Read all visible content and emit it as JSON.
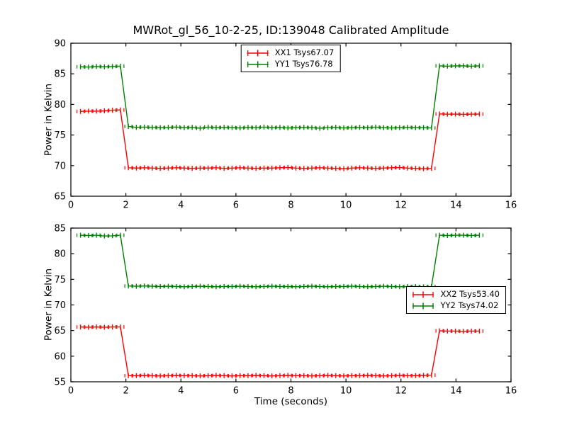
{
  "title": "MWRot_gl_56_10-2-25, ID:139048 Calibrated Amplitude",
  "colors": {
    "xx_series": "#ff0000",
    "yy_series": "#008000",
    "frame": "#000000",
    "background": "#ffffff"
  },
  "chart_data": [
    {
      "type": "line",
      "id": "top-subplot",
      "title": "",
      "xlabel": "",
      "ylabel": "Power in Kelvin",
      "xlim": [
        0,
        16
      ],
      "ylim": [
        65,
        90
      ],
      "xticks": [
        0,
        2,
        4,
        6,
        8,
        10,
        12,
        14,
        16
      ],
      "yticks": [
        65,
        70,
        75,
        80,
        85,
        90
      ],
      "grid": false,
      "legend_loc": "upper center",
      "marker": "plus-with-xerr-caps",
      "x": [
        0.35,
        0.64,
        0.93,
        1.22,
        1.51,
        1.8,
        2.09,
        2.38,
        2.67,
        2.96,
        3.25,
        3.54,
        3.83,
        4.12,
        4.41,
        4.7,
        4.99,
        5.28,
        5.57,
        5.86,
        6.15,
        6.44,
        6.73,
        7.02,
        7.31,
        7.6,
        7.89,
        8.18,
        8.47,
        8.76,
        9.05,
        9.34,
        9.63,
        9.92,
        10.21,
        10.5,
        10.79,
        11.08,
        11.37,
        11.66,
        11.95,
        12.24,
        12.53,
        12.82,
        13.11,
        13.4,
        13.69,
        13.98,
        14.27,
        14.56,
        14.85
      ],
      "series": [
        {
          "label": "XX1 Tsys67.07",
          "color": "#ff0000",
          "values": [
            78.85,
            78.9,
            78.9,
            78.95,
            79.05,
            79.1,
            69.65,
            69.6,
            69.65,
            69.6,
            69.55,
            69.6,
            69.65,
            69.6,
            69.55,
            69.6,
            69.6,
            69.65,
            69.55,
            69.6,
            69.65,
            69.6,
            69.55,
            69.6,
            69.6,
            69.65,
            69.7,
            69.6,
            69.55,
            69.6,
            69.65,
            69.6,
            69.55,
            69.5,
            69.6,
            69.65,
            69.6,
            69.55,
            69.6,
            69.65,
            69.7,
            69.6,
            69.55,
            69.5,
            69.55,
            78.45,
            78.4,
            78.42,
            78.38,
            78.4,
            78.42
          ]
        },
        {
          "label": "YY1 Tsys76.78",
          "color": "#008000",
          "values": [
            86.15,
            86.1,
            86.2,
            86.15,
            86.2,
            86.25,
            76.4,
            76.25,
            76.3,
            76.25,
            76.2,
            76.25,
            76.3,
            76.2,
            76.25,
            76.1,
            76.3,
            76.2,
            76.25,
            76.2,
            76.15,
            76.25,
            76.2,
            76.3,
            76.2,
            76.25,
            76.15,
            76.2,
            76.25,
            76.2,
            76.1,
            76.2,
            76.25,
            76.15,
            76.2,
            76.25,
            76.2,
            76.3,
            76.2,
            76.15,
            76.2,
            76.25,
            76.2,
            76.2,
            76.15,
            86.3,
            86.25,
            86.3,
            86.3,
            86.25,
            86.3
          ]
        }
      ]
    },
    {
      "type": "line",
      "id": "bottom-subplot",
      "title": "",
      "xlabel": "Time (seconds)",
      "ylabel": "Power in Kelvin",
      "xlim": [
        0,
        16
      ],
      "ylim": [
        55,
        85
      ],
      "xticks": [
        0,
        2,
        4,
        6,
        8,
        10,
        12,
        14,
        16
      ],
      "yticks": [
        55,
        60,
        65,
        70,
        75,
        80,
        85
      ],
      "grid": false,
      "legend_loc": "center right",
      "marker": "plus-with-xerr-caps",
      "x": [
        0.35,
        0.64,
        0.93,
        1.22,
        1.51,
        1.8,
        2.09,
        2.38,
        2.67,
        2.96,
        3.25,
        3.54,
        3.83,
        4.12,
        4.41,
        4.7,
        4.99,
        5.28,
        5.57,
        5.86,
        6.15,
        6.44,
        6.73,
        7.02,
        7.31,
        7.6,
        7.89,
        8.18,
        8.47,
        8.76,
        9.05,
        9.34,
        9.63,
        9.92,
        10.21,
        10.5,
        10.79,
        11.08,
        11.37,
        11.66,
        11.95,
        12.24,
        12.53,
        12.82,
        13.11,
        13.4,
        13.69,
        13.98,
        14.27,
        14.56,
        14.85
      ],
      "series": [
        {
          "label": "XX2 Tsys53.40",
          "color": "#ff0000",
          "values": [
            65.7,
            65.65,
            65.7,
            65.65,
            65.7,
            65.7,
            56.2,
            56.2,
            56.25,
            56.2,
            56.15,
            56.2,
            56.25,
            56.2,
            56.2,
            56.15,
            56.2,
            56.25,
            56.2,
            56.15,
            56.2,
            56.2,
            56.25,
            56.2,
            56.15,
            56.2,
            56.25,
            56.2,
            56.2,
            56.15,
            56.2,
            56.25,
            56.2,
            56.15,
            56.2,
            56.2,
            56.25,
            56.2,
            56.15,
            56.2,
            56.25,
            56.2,
            56.2,
            56.25,
            56.3,
            64.95,
            64.9,
            64.9,
            64.85,
            64.9,
            64.9
          ]
        },
        {
          "label": "YY2 Tsys74.02",
          "color": "#008000",
          "values": [
            83.6,
            83.55,
            83.6,
            83.45,
            83.5,
            83.6,
            73.7,
            73.65,
            73.7,
            73.65,
            73.6,
            73.65,
            73.6,
            73.55,
            73.6,
            73.65,
            73.6,
            73.55,
            73.6,
            73.6,
            73.65,
            73.6,
            73.55,
            73.6,
            73.65,
            73.6,
            73.6,
            73.55,
            73.6,
            73.65,
            73.6,
            73.55,
            73.6,
            73.6,
            73.65,
            73.6,
            73.55,
            73.6,
            73.65,
            73.6,
            73.55,
            73.6,
            73.6,
            73.55,
            73.6,
            83.6,
            83.55,
            83.6,
            83.6,
            83.55,
            83.6
          ]
        }
      ]
    }
  ]
}
